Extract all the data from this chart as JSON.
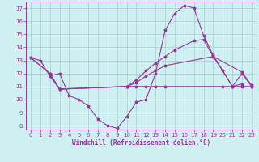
{
  "background_color": "#cef0f0",
  "grid_color": "#aacccc",
  "line_color": "#993399",
  "xlabel": "Windchill (Refroidissement éolien,°C)",
  "xlim": [
    -0.5,
    23.5
  ],
  "ylim": [
    7.7,
    17.5
  ],
  "yticks": [
    8,
    9,
    10,
    11,
    12,
    13,
    14,
    15,
    16,
    17
  ],
  "xticks": [
    0,
    1,
    2,
    3,
    4,
    5,
    6,
    7,
    8,
    9,
    10,
    11,
    12,
    13,
    14,
    15,
    16,
    17,
    18,
    19,
    20,
    21,
    22,
    23
  ],
  "curve1_x": [
    0,
    1,
    2,
    3,
    4,
    5,
    6,
    7,
    8,
    9,
    10,
    11,
    12,
    13,
    14,
    15,
    16,
    17,
    18,
    19,
    20,
    21,
    22
  ],
  "curve1_y": [
    13.2,
    13.0,
    11.8,
    12.0,
    10.3,
    10.0,
    9.5,
    8.5,
    8.0,
    7.8,
    8.7,
    9.8,
    10.0,
    12.0,
    15.3,
    16.6,
    17.2,
    17.0,
    14.9,
    13.4,
    12.2,
    11.0,
    11.2
  ],
  "curve2_x": [
    0,
    2,
    3,
    10,
    11,
    12,
    13,
    14,
    15,
    17,
    18,
    19,
    22,
    23
  ],
  "curve2_y": [
    13.2,
    12.0,
    10.8,
    11.0,
    11.5,
    12.2,
    12.8,
    13.3,
    13.8,
    14.5,
    14.6,
    13.3,
    12.1,
    11.1
  ],
  "curve3_x": [
    0,
    2,
    3,
    10,
    11,
    12,
    13,
    14,
    19,
    20,
    21,
    22,
    23
  ],
  "curve3_y": [
    13.2,
    12.0,
    10.8,
    11.0,
    11.3,
    11.8,
    12.2,
    12.6,
    13.3,
    12.2,
    11.0,
    12.0,
    11.0
  ],
  "curve4_x": [
    2,
    3,
    10,
    11,
    12,
    13,
    14,
    20,
    21,
    22,
    23
  ],
  "curve4_y": [
    11.8,
    10.8,
    11.0,
    11.0,
    11.0,
    11.0,
    11.0,
    11.0,
    11.0,
    11.0,
    11.0
  ]
}
